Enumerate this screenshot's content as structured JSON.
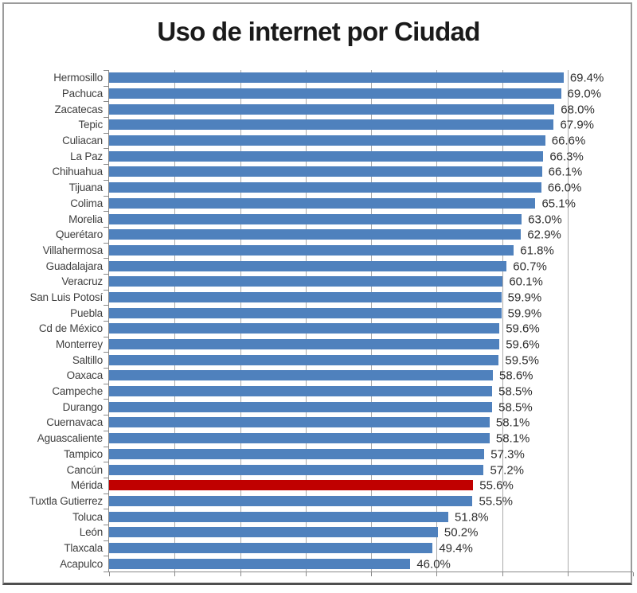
{
  "title": "Uso de internet por Ciudad",
  "colors": {
    "bar": "#4F81BD",
    "highlight": "#C00000",
    "gridline": "#ABABAB",
    "axis": "#898989",
    "frame": "#9B9B9B",
    "frame_bottom": "#4F4F4F",
    "title": "#1A1A1A",
    "category_label": "#3F3F3F",
    "value_label": "#2E2E2E"
  },
  "chart_data": {
    "type": "bar",
    "orientation": "horizontal",
    "title": "Uso de internet por Ciudad",
    "categories": [
      "Hermosillo",
      "Pachuca",
      "Zacatecas",
      "Tepic",
      "Culiacan",
      "La Paz",
      "Chihuahua",
      "Tijuana",
      "Colima",
      "Morelia",
      "Querétaro",
      "Villahermosa",
      "Guadalajara",
      "Veracruz",
      "San Luis Potosí",
      "Puebla",
      "Cd de México",
      "Monterrey",
      "Saltillo",
      "Oaxaca",
      "Campeche",
      "Durango",
      "Cuernavaca",
      "Aguascaliente",
      "Tampico",
      "Cancún",
      "Mérida",
      "Tuxtla Gutierrez",
      "Toluca",
      "León",
      "Tlaxcala",
      "Acapulco"
    ],
    "values": [
      69.4,
      69.0,
      68.0,
      67.9,
      66.6,
      66.3,
      66.1,
      66.0,
      65.1,
      63.0,
      62.9,
      61.8,
      60.7,
      60.1,
      59.9,
      59.9,
      59.6,
      59.6,
      59.5,
      58.6,
      58.5,
      58.5,
      58.1,
      58.1,
      57.3,
      57.2,
      55.6,
      55.5,
      51.8,
      50.2,
      49.4,
      46.0
    ],
    "value_labels": [
      "69.4%",
      "69.0%",
      "68.0%",
      "67.9%",
      "66.6%",
      "66.3%",
      "66.1%",
      "66.0%",
      "65.1%",
      "63.0%",
      "62.9%",
      "61.8%",
      "60.7%",
      "60.1%",
      "59.9%",
      "59.9%",
      "59.6%",
      "59.6%",
      "59.5%",
      "58.6%",
      "58.5%",
      "58.5%",
      "58.1%",
      "58.1%",
      "57.3%",
      "57.2%",
      "55.6%",
      "55.5%",
      "51.8%",
      "50.2%",
      "49.4%",
      "46.0%"
    ],
    "highlighted_category": "Mérida",
    "highlight_index": 26,
    "xlim": [
      0,
      80
    ],
    "gridline_interval": 10,
    "grid": true,
    "legend": false,
    "axis_value_labels_visible": false
  }
}
